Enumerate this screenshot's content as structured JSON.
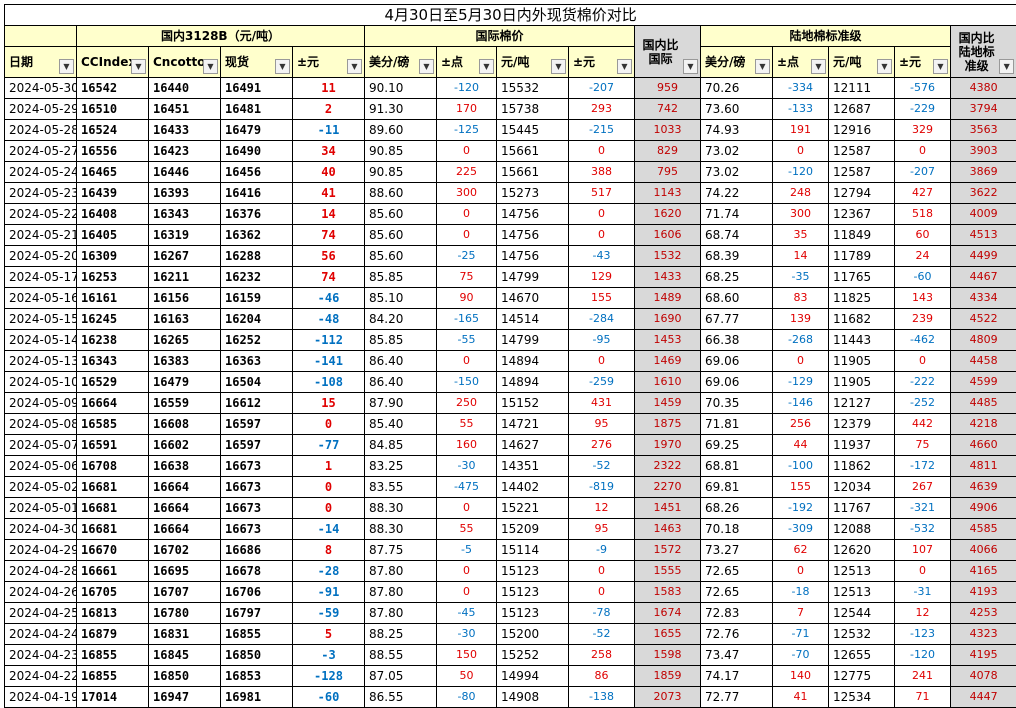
{
  "title": "4月30日至5月30日内外现货棉价对比",
  "groups": {
    "domestic": "国内3128B（元/吨）",
    "intl": "国际棉价",
    "landed": "陆地棉标准级"
  },
  "headers": {
    "date": "日期",
    "ccindex": "CCIndex",
    "cncotton": "Cncotton",
    "spot": "现货",
    "chg": "±元",
    "intl_usd": "美分/磅",
    "intl_pts": "±点",
    "intl_cny": "元/吨",
    "intl_chg": "±元",
    "dom_vs_intl": "国内比国际",
    "land_usd": "美分/磅",
    "land_pts": "±点",
    "land_cny": "元/吨",
    "land_chg": "±元",
    "dom_vs_land": "国内比陆地标准级"
  },
  "colors": {
    "header_bg": "#FFFFCC",
    "grey_col": "#D9D9D9",
    "up": "#E00000",
    "down": "#0070C0"
  },
  "icons": {
    "filter": "dropdown-arrow-icon"
  },
  "rows": [
    {
      "date": "2024-05-30",
      "cc": "16542",
      "cn": "16440",
      "spot": "16491",
      "chg": "11",
      "iu": "90.10",
      "ip": "-120",
      "ic": "15532",
      "ich": "-207",
      "d1": "959",
      "lu": "70.26",
      "lp": "-334",
      "lc": "12111",
      "lch": "-576",
      "d2": "4380"
    },
    {
      "date": "2024-05-29",
      "cc": "16510",
      "cn": "16451",
      "spot": "16481",
      "chg": "2",
      "iu": "91.30",
      "ip": "170",
      "ic": "15738",
      "ich": "293",
      "d1": "742",
      "lu": "73.60",
      "lp": "-133",
      "lc": "12687",
      "lch": "-229",
      "d2": "3794"
    },
    {
      "date": "2024-05-28",
      "cc": "16524",
      "cn": "16433",
      "spot": "16479",
      "chg": "-11",
      "iu": "89.60",
      "ip": "-125",
      "ic": "15445",
      "ich": "-215",
      "d1": "1033",
      "lu": "74.93",
      "lp": "191",
      "lc": "12916",
      "lch": "329",
      "d2": "3563"
    },
    {
      "date": "2024-05-27",
      "cc": "16556",
      "cn": "16423",
      "spot": "16490",
      "chg": "34",
      "iu": "90.85",
      "ip": "0",
      "ic": "15661",
      "ich": "0",
      "d1": "829",
      "lu": "73.02",
      "lp": "0",
      "lc": "12587",
      "lch": "0",
      "d2": "3903"
    },
    {
      "date": "2024-05-24",
      "cc": "16465",
      "cn": "16446",
      "spot": "16456",
      "chg": "40",
      "iu": "90.85",
      "ip": "225",
      "ic": "15661",
      "ich": "388",
      "d1": "795",
      "lu": "73.02",
      "lp": "-120",
      "lc": "12587",
      "lch": "-207",
      "d2": "3869"
    },
    {
      "date": "2024-05-23",
      "cc": "16439",
      "cn": "16393",
      "spot": "16416",
      "chg": "41",
      "iu": "88.60",
      "ip": "300",
      "ic": "15273",
      "ich": "517",
      "d1": "1143",
      "lu": "74.22",
      "lp": "248",
      "lc": "12794",
      "lch": "427",
      "d2": "3622"
    },
    {
      "date": "2024-05-22",
      "cc": "16408",
      "cn": "16343",
      "spot": "16376",
      "chg": "14",
      "iu": "85.60",
      "ip": "0",
      "ic": "14756",
      "ich": "0",
      "d1": "1620",
      "lu": "71.74",
      "lp": "300",
      "lc": "12367",
      "lch": "518",
      "d2": "4009"
    },
    {
      "date": "2024-05-21",
      "cc": "16405",
      "cn": "16319",
      "spot": "16362",
      "chg": "74",
      "iu": "85.60",
      "ip": "0",
      "ic": "14756",
      "ich": "0",
      "d1": "1606",
      "lu": "68.74",
      "lp": "35",
      "lc": "11849",
      "lch": "60",
      "d2": "4513"
    },
    {
      "date": "2024-05-20",
      "cc": "16309",
      "cn": "16267",
      "spot": "16288",
      "chg": "56",
      "iu": "85.60",
      "ip": "-25",
      "ic": "14756",
      "ich": "-43",
      "d1": "1532",
      "lu": "68.39",
      "lp": "14",
      "lc": "11789",
      "lch": "24",
      "d2": "4499"
    },
    {
      "date": "2024-05-17",
      "cc": "16253",
      "cn": "16211",
      "spot": "16232",
      "chg": "74",
      "iu": "85.85",
      "ip": "75",
      "ic": "14799",
      "ich": "129",
      "d1": "1433",
      "lu": "68.25",
      "lp": "-35",
      "lc": "11765",
      "lch": "-60",
      "d2": "4467"
    },
    {
      "date": "2024-05-16",
      "cc": "16161",
      "cn": "16156",
      "spot": "16159",
      "chg": "-46",
      "iu": "85.10",
      "ip": "90",
      "ic": "14670",
      "ich": "155",
      "d1": "1489",
      "lu": "68.60",
      "lp": "83",
      "lc": "11825",
      "lch": "143",
      "d2": "4334"
    },
    {
      "date": "2024-05-15",
      "cc": "16245",
      "cn": "16163",
      "spot": "16204",
      "chg": "-48",
      "iu": "84.20",
      "ip": "-165",
      "ic": "14514",
      "ich": "-284",
      "d1": "1690",
      "lu": "67.77",
      "lp": "139",
      "lc": "11682",
      "lch": "239",
      "d2": "4522"
    },
    {
      "date": "2024-05-14",
      "cc": "16238",
      "cn": "16265",
      "spot": "16252",
      "chg": "-112",
      "iu": "85.85",
      "ip": "-55",
      "ic": "14799",
      "ich": "-95",
      "d1": "1453",
      "lu": "66.38",
      "lp": "-268",
      "lc": "11443",
      "lch": "-462",
      "d2": "4809"
    },
    {
      "date": "2024-05-13",
      "cc": "16343",
      "cn": "16383",
      "spot": "16363",
      "chg": "-141",
      "iu": "86.40",
      "ip": "0",
      "ic": "14894",
      "ich": "0",
      "d1": "1469",
      "lu": "69.06",
      "lp": "0",
      "lc": "11905",
      "lch": "0",
      "d2": "4458"
    },
    {
      "date": "2024-05-10",
      "cc": "16529",
      "cn": "16479",
      "spot": "16504",
      "chg": "-108",
      "iu": "86.40",
      "ip": "-150",
      "ic": "14894",
      "ich": "-259",
      "d1": "1610",
      "lu": "69.06",
      "lp": "-129",
      "lc": "11905",
      "lch": "-222",
      "d2": "4599"
    },
    {
      "date": "2024-05-09",
      "cc": "16664",
      "cn": "16559",
      "spot": "16612",
      "chg": "15",
      "iu": "87.90",
      "ip": "250",
      "ic": "15152",
      "ich": "431",
      "d1": "1459",
      "lu": "70.35",
      "lp": "-146",
      "lc": "12127",
      "lch": "-252",
      "d2": "4485"
    },
    {
      "date": "2024-05-08",
      "cc": "16585",
      "cn": "16608",
      "spot": "16597",
      "chg": "0",
      "iu": "85.40",
      "ip": "55",
      "ic": "14721",
      "ich": "95",
      "d1": "1875",
      "lu": "71.81",
      "lp": "256",
      "lc": "12379",
      "lch": "442",
      "d2": "4218"
    },
    {
      "date": "2024-05-07",
      "cc": "16591",
      "cn": "16602",
      "spot": "16597",
      "chg": "-77",
      "iu": "84.85",
      "ip": "160",
      "ic": "14627",
      "ich": "276",
      "d1": "1970",
      "lu": "69.25",
      "lp": "44",
      "lc": "11937",
      "lch": "75",
      "d2": "4660"
    },
    {
      "date": "2024-05-06",
      "cc": "16708",
      "cn": "16638",
      "spot": "16673",
      "chg": "1",
      "iu": "83.25",
      "ip": "-30",
      "ic": "14351",
      "ich": "-52",
      "d1": "2322",
      "lu": "68.81",
      "lp": "-100",
      "lc": "11862",
      "lch": "-172",
      "d2": "4811"
    },
    {
      "date": "2024-05-02",
      "cc": "16681",
      "cn": "16664",
      "spot": "16673",
      "chg": "0",
      "iu": "83.55",
      "ip": "-475",
      "ic": "14402",
      "ich": "-819",
      "d1": "2270",
      "lu": "69.81",
      "lp": "155",
      "lc": "12034",
      "lch": "267",
      "d2": "4639"
    },
    {
      "date": "2024-05-01",
      "cc": "16681",
      "cn": "16664",
      "spot": "16673",
      "chg": "0",
      "iu": "88.30",
      "ip": "0",
      "ic": "15221",
      "ich": "12",
      "d1": "1451",
      "lu": "68.26",
      "lp": "-192",
      "lc": "11767",
      "lch": "-321",
      "d2": "4906"
    },
    {
      "date": "2024-04-30",
      "cc": "16681",
      "cn": "16664",
      "spot": "16673",
      "chg": "-14",
      "iu": "88.30",
      "ip": "55",
      "ic": "15209",
      "ich": "95",
      "d1": "1463",
      "lu": "70.18",
      "lp": "-309",
      "lc": "12088",
      "lch": "-532",
      "d2": "4585"
    },
    {
      "date": "2024-04-29",
      "cc": "16670",
      "cn": "16702",
      "spot": "16686",
      "chg": "8",
      "iu": "87.75",
      "ip": "-5",
      "ic": "15114",
      "ich": "-9",
      "d1": "1572",
      "lu": "73.27",
      "lp": "62",
      "lc": "12620",
      "lch": "107",
      "d2": "4066"
    },
    {
      "date": "2024-04-28",
      "cc": "16661",
      "cn": "16695",
      "spot": "16678",
      "chg": "-28",
      "iu": "87.80",
      "ip": "0",
      "ic": "15123",
      "ich": "0",
      "d1": "1555",
      "lu": "72.65",
      "lp": "0",
      "lc": "12513",
      "lch": "0",
      "d2": "4165"
    },
    {
      "date": "2024-04-26",
      "cc": "16705",
      "cn": "16707",
      "spot": "16706",
      "chg": "-91",
      "iu": "87.80",
      "ip": "0",
      "ic": "15123",
      "ich": "0",
      "d1": "1583",
      "lu": "72.65",
      "lp": "-18",
      "lc": "12513",
      "lch": "-31",
      "d2": "4193"
    },
    {
      "date": "2024-04-25",
      "cc": "16813",
      "cn": "16780",
      "spot": "16797",
      "chg": "-59",
      "iu": "87.80",
      "ip": "-45",
      "ic": "15123",
      "ich": "-78",
      "d1": "1674",
      "lu": "72.83",
      "lp": "7",
      "lc": "12544",
      "lch": "12",
      "d2": "4253"
    },
    {
      "date": "2024-04-24",
      "cc": "16879",
      "cn": "16831",
      "spot": "16855",
      "chg": "5",
      "iu": "88.25",
      "ip": "-30",
      "ic": "15200",
      "ich": "-52",
      "d1": "1655",
      "lu": "72.76",
      "lp": "-71",
      "lc": "12532",
      "lch": "-123",
      "d2": "4323"
    },
    {
      "date": "2024-04-23",
      "cc": "16855",
      "cn": "16845",
      "spot": "16850",
      "chg": "-3",
      "iu": "88.55",
      "ip": "150",
      "ic": "15252",
      "ich": "258",
      "d1": "1598",
      "lu": "73.47",
      "lp": "-70",
      "lc": "12655",
      "lch": "-120",
      "d2": "4195"
    },
    {
      "date": "2024-04-22",
      "cc": "16855",
      "cn": "16850",
      "spot": "16853",
      "chg": "-128",
      "iu": "87.05",
      "ip": "50",
      "ic": "14994",
      "ich": "86",
      "d1": "1859",
      "lu": "74.17",
      "lp": "140",
      "lc": "12775",
      "lch": "241",
      "d2": "4078"
    },
    {
      "date": "2024-04-19",
      "cc": "17014",
      "cn": "16947",
      "spot": "16981",
      "chg": "-60",
      "iu": "86.55",
      "ip": "-80",
      "ic": "14908",
      "ich": "-138",
      "d1": "2073",
      "lu": "72.77",
      "lp": "41",
      "lc": "12534",
      "lch": "71",
      "d2": "4447"
    }
  ]
}
